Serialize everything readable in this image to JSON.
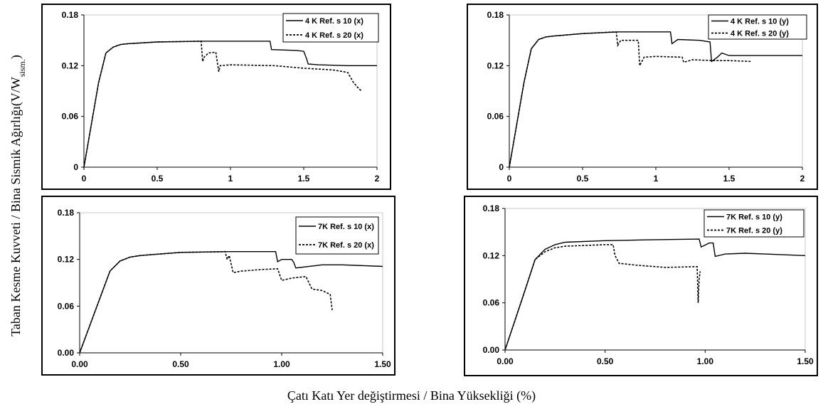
{
  "figure": {
    "ylabel_main": "Taban Kesme Kuvveti / Bina Sismik Ağırlığı(V/W",
    "ylabel_sub": "sism.",
    "ylabel_close": ")",
    "xlabel": "Çatı Katı Yer değiştirmesi / Bina Yüksekliği (%)"
  },
  "chart_data": [
    {
      "type": "line",
      "xlim": [
        0,
        2
      ],
      "ylim": [
        0,
        0.18
      ],
      "xticks": [
        0,
        0.5,
        1,
        1.5,
        2
      ],
      "xtick_labels": [
        "0",
        "0.5",
        "1",
        "1.5",
        "2"
      ],
      "yticks": [
        0,
        0.06,
        0.12,
        0.18
      ],
      "ytick_labels": [
        "0",
        "0.06",
        "0.12",
        "0.18"
      ],
      "legend_position": "top-right",
      "series": [
        {
          "name": "4 K Ref. s 10 (x)",
          "style": "solid",
          "x": [
            0,
            0.05,
            0.1,
            0.15,
            0.2,
            0.25,
            0.3,
            0.5,
            0.8,
            1.0,
            1.27,
            1.28,
            1.45,
            1.5,
            1.52,
            1.53,
            1.6,
            1.8,
            2.0
          ],
          "y": [
            0,
            0.05,
            0.1,
            0.135,
            0.142,
            0.145,
            0.146,
            0.148,
            0.149,
            0.149,
            0.149,
            0.139,
            0.138,
            0.137,
            0.128,
            0.122,
            0.121,
            0.12,
            0.12
          ]
        },
        {
          "name": "4 K Ref. s 20 (x)",
          "style": "dashed",
          "x": [
            0,
            0.05,
            0.1,
            0.15,
            0.2,
            0.25,
            0.3,
            0.5,
            0.8,
            0.81,
            0.82,
            0.85,
            0.9,
            0.92,
            0.93,
            1.0,
            1.3,
            1.5,
            1.7,
            1.8,
            1.84,
            1.88,
            1.9
          ],
          "y": [
            0,
            0.05,
            0.1,
            0.135,
            0.142,
            0.145,
            0.146,
            0.148,
            0.149,
            0.125,
            0.13,
            0.135,
            0.136,
            0.113,
            0.12,
            0.121,
            0.12,
            0.117,
            0.115,
            0.112,
            0.1,
            0.092,
            0.09
          ]
        }
      ]
    },
    {
      "type": "line",
      "xlim": [
        0,
        2
      ],
      "ylim": [
        0,
        0.18
      ],
      "xticks": [
        0,
        0.5,
        1,
        1.5,
        2
      ],
      "xtick_labels": [
        "0",
        "0.5",
        "1",
        "1.5",
        "2"
      ],
      "yticks": [
        0,
        0.06,
        0.12,
        0.18
      ],
      "ytick_labels": [
        "0",
        "0.06",
        "0.12",
        "0.18"
      ],
      "legend_position": "top-right",
      "series": [
        {
          "name": "4 K Ref. s 10 (y)",
          "style": "solid",
          "x": [
            0,
            0.05,
            0.1,
            0.15,
            0.2,
            0.25,
            0.3,
            0.5,
            0.75,
            1.0,
            1.1,
            1.11,
            1.15,
            1.3,
            1.37,
            1.38,
            1.42,
            1.45,
            1.5,
            2.0
          ],
          "y": [
            0,
            0.05,
            0.1,
            0.14,
            0.151,
            0.154,
            0.155,
            0.158,
            0.16,
            0.16,
            0.16,
            0.146,
            0.151,
            0.15,
            0.148,
            0.125,
            0.13,
            0.135,
            0.132,
            0.132
          ]
        },
        {
          "name": "4 K Ref. s 20 (y)",
          "style": "dashed",
          "x": [
            0,
            0.05,
            0.1,
            0.15,
            0.2,
            0.25,
            0.3,
            0.5,
            0.73,
            0.74,
            0.76,
            0.88,
            0.89,
            0.92,
            1.0,
            1.18,
            1.19,
            1.25,
            1.4,
            1.5,
            1.65
          ],
          "y": [
            0,
            0.05,
            0.1,
            0.14,
            0.151,
            0.154,
            0.155,
            0.158,
            0.16,
            0.144,
            0.15,
            0.15,
            0.12,
            0.13,
            0.131,
            0.13,
            0.124,
            0.127,
            0.126,
            0.126,
            0.125
          ]
        }
      ]
    },
    {
      "type": "line",
      "xlim": [
        0,
        1.5
      ],
      "ylim": [
        0,
        0.18
      ],
      "xticks": [
        0,
        0.5,
        1,
        1.5
      ],
      "xtick_labels": [
        "0.00",
        "0.50",
        "1.00",
        "1.50"
      ],
      "yticks": [
        0,
        0.06,
        0.12,
        0.18
      ],
      "ytick_labels": [
        "0.00",
        "0.06",
        "0.12",
        "0.18"
      ],
      "legend_position": "top-right",
      "series": [
        {
          "name": "7K Ref. s 10 (x)",
          "style": "solid",
          "x": [
            0,
            0.05,
            0.1,
            0.15,
            0.2,
            0.25,
            0.3,
            0.5,
            0.75,
            0.97,
            0.98,
            1.0,
            1.05,
            1.06,
            1.07,
            1.2,
            1.3,
            1.5
          ],
          "y": [
            0,
            0.035,
            0.07,
            0.105,
            0.118,
            0.123,
            0.125,
            0.129,
            0.13,
            0.13,
            0.117,
            0.12,
            0.12,
            0.116,
            0.109,
            0.113,
            0.113,
            0.111
          ]
        },
        {
          "name": "7K Ref. s 20 (x)",
          "style": "dashed",
          "x": [
            0,
            0.05,
            0.1,
            0.15,
            0.2,
            0.25,
            0.3,
            0.5,
            0.72,
            0.73,
            0.74,
            0.76,
            0.8,
            0.9,
            0.98,
            1.0,
            1.05,
            1.12,
            1.15,
            1.2,
            1.24,
            1.25
          ],
          "y": [
            0,
            0.035,
            0.07,
            0.105,
            0.118,
            0.123,
            0.125,
            0.129,
            0.13,
            0.12,
            0.125,
            0.103,
            0.105,
            0.107,
            0.108,
            0.093,
            0.096,
            0.098,
            0.082,
            0.08,
            0.075,
            0.055
          ]
        }
      ]
    },
    {
      "type": "line",
      "xlim": [
        0,
        1.5
      ],
      "ylim": [
        0,
        0.18
      ],
      "xticks": [
        0,
        0.5,
        1,
        1.5
      ],
      "xtick_labels": [
        "0.00",
        "0.50",
        "1.00",
        "1.50"
      ],
      "yticks": [
        0,
        0.06,
        0.12,
        0.18
      ],
      "ytick_labels": [
        "0.00",
        "0.06",
        "0.12",
        "0.18"
      ],
      "legend_position": "top-right",
      "series": [
        {
          "name": "7K Ref. s 10 (y)",
          "style": "solid",
          "x": [
            0,
            0.05,
            0.1,
            0.15,
            0.2,
            0.25,
            0.3,
            0.5,
            0.7,
            0.97,
            0.98,
            1.02,
            1.04,
            1.05,
            1.1,
            1.2,
            1.3,
            1.5
          ],
          "y": [
            0,
            0.038,
            0.076,
            0.115,
            0.128,
            0.134,
            0.137,
            0.139,
            0.14,
            0.141,
            0.131,
            0.136,
            0.136,
            0.119,
            0.122,
            0.123,
            0.122,
            0.12
          ]
        },
        {
          "name": "7K Ref. s 20 (y)",
          "style": "dashed",
          "x": [
            0,
            0.05,
            0.1,
            0.15,
            0.2,
            0.25,
            0.3,
            0.5,
            0.54,
            0.55,
            0.57,
            0.58,
            0.65,
            0.8,
            0.96,
            0.965,
            0.97,
            0.975
          ],
          "y": [
            0,
            0.038,
            0.076,
            0.115,
            0.125,
            0.13,
            0.132,
            0.134,
            0.134,
            0.12,
            0.11,
            0.11,
            0.108,
            0.105,
            0.106,
            0.06,
            0.09,
            0.1
          ]
        }
      ]
    }
  ]
}
